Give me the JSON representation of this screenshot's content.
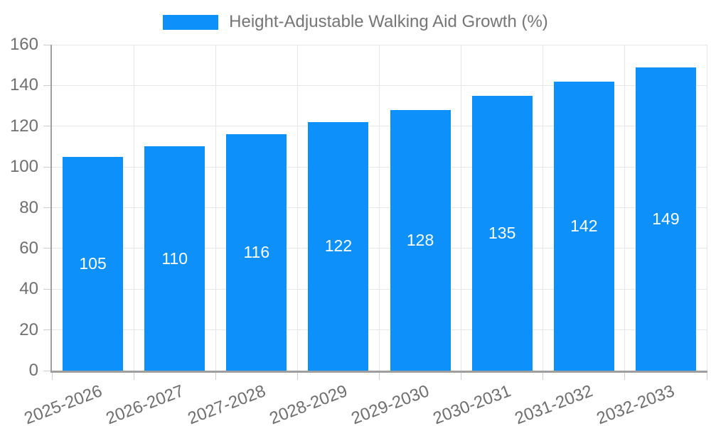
{
  "chart_data": {
    "type": "bar",
    "title": "Height-Adjustable Walking Aid Growth (%)",
    "categories": [
      "2025-2026",
      "2026-2027",
      "2027-2028",
      "2028-2029",
      "2029-2030",
      "2030-2031",
      "2031-2032",
      "2032-2033"
    ],
    "values": [
      105,
      110,
      116,
      122,
      128,
      135,
      142,
      149
    ],
    "series": [
      {
        "name": "Height-Adjustable Walking Aid Growth (%)",
        "values": [
          105,
          110,
          116,
          122,
          128,
          135,
          142,
          149
        ]
      }
    ],
    "xlabel": "",
    "ylabel": "",
    "ylim": [
      0,
      160
    ],
    "yticks": [
      0,
      20,
      40,
      60,
      80,
      100,
      120,
      140,
      160
    ],
    "grid": true,
    "legend_position": "top-center",
    "value_label_position": "inside-center",
    "colors": {
      "bar": "#0e90fa",
      "value_label": "#ffffff",
      "axis": "#9e9e9e",
      "gridline": "#e6e6e6",
      "tick": "#cccccc",
      "label_text": "#6f6f6f",
      "background": "#ffffff"
    }
  },
  "legend": {
    "label": "Height-Adjustable Walking Aid Growth (%)"
  }
}
